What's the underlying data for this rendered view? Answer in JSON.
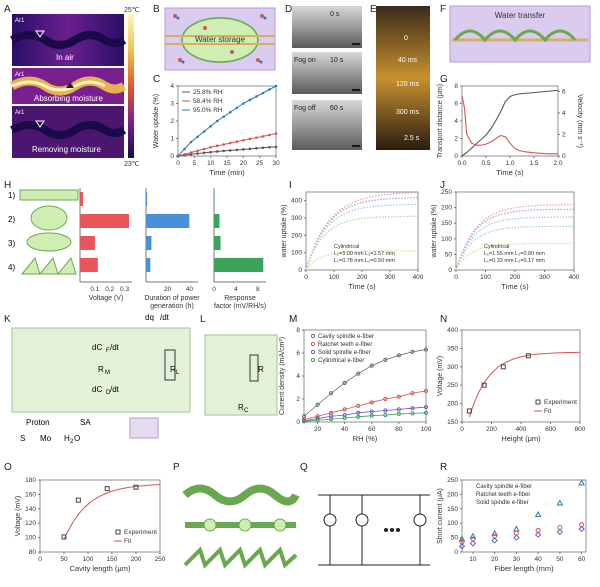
{
  "panel_letters": [
    "A",
    "B",
    "C",
    "D",
    "E",
    "F",
    "G",
    "H",
    "I",
    "J",
    "K",
    "L",
    "M",
    "N",
    "O",
    "P",
    "Q",
    "R"
  ],
  "panel_a": {
    "tag": "Ar1",
    "scale_max": "25℃",
    "scale_min": "23℃",
    "captions": [
      "In air",
      "Absorbing moisture",
      "Removing moisture"
    ],
    "colors": {
      "cold": "#1b0a4a",
      "mid": "#7a1f8f",
      "hot": "#f2c14e"
    }
  },
  "panel_b": {
    "label": "Water storage",
    "accent": "#8bd36a",
    "frame": "#b49ad9"
  },
  "panel_d": {
    "labels": [
      "0 s",
      "Fog on",
      "10 s",
      "Fog off",
      "60 s"
    ]
  },
  "panel_e": {
    "labels": [
      "0",
      "40 ms",
      "120 ms",
      "300 ms",
      "2.5 s"
    ]
  },
  "panel_f": {
    "label": "Water transfer"
  },
  "panel_h": {
    "rows": [
      "1)",
      "2)",
      "3)",
      "4)"
    ],
    "axis_titles": [
      "Voltage (V)",
      "Duration of power\ngeneration (h)",
      "Response\nfactor (mV/RH/s)"
    ],
    "colors": [
      "#e8555a",
      "#4a90d9",
      "#3aa55a"
    ]
  },
  "panel_k": {
    "labels": [
      "dq",
      "/dt",
      "dC",
      "F",
      "/dt",
      "R",
      "M",
      "dC",
      "D",
      "/dt",
      "R",
      "L",
      "R",
      "C"
    ],
    "legend": [
      "Proton",
      "SA",
      "S",
      "Mo",
      "H",
      "2",
      "O"
    ]
  },
  "panel_l": {
    "labels": [
      "R",
      "R",
      "C"
    ]
  },
  "panel_n": {
    "inset_label": "Height",
    "legend": [
      "Experiment",
      "Fit"
    ]
  },
  "panel_o": {
    "inset_label": "Length",
    "legend": [
      "Experiment",
      "Fit"
    ]
  },
  "chart_data": [
    {
      "id": "C",
      "type": "line",
      "xlabel": "Time (min)",
      "ylabel": "Water uptake (%)",
      "xlim": [
        0,
        30
      ],
      "ylim": [
        0,
        4
      ],
      "xticks": [
        "0",
        "5",
        "10",
        "15",
        "20",
        "25",
        "30"
      ],
      "yticks": [
        "0",
        "1",
        "2",
        "3",
        "4"
      ],
      "series": [
        {
          "name": "25.8% RH",
          "color": "#555555",
          "x": [
            0,
            2,
            4,
            6,
            8,
            10,
            12,
            14,
            16,
            18,
            20,
            22,
            24,
            26,
            28,
            30
          ],
          "y": [
            0,
            0.05,
            0.1,
            0.14,
            0.18,
            0.22,
            0.26,
            0.29,
            0.32,
            0.35,
            0.38,
            0.41,
            0.44,
            0.47,
            0.5,
            0.52
          ]
        },
        {
          "name": "58.4% RH",
          "color": "#d9534f",
          "x": [
            0,
            2,
            4,
            6,
            8,
            10,
            12,
            14,
            16,
            18,
            20,
            22,
            24,
            26,
            28,
            30
          ],
          "y": [
            0,
            0.1,
            0.2,
            0.3,
            0.4,
            0.5,
            0.58,
            0.66,
            0.74,
            0.82,
            0.9,
            0.98,
            1.05,
            1.12,
            1.2,
            1.28
          ]
        },
        {
          "name": "95.0% RH",
          "color": "#2a7ab0",
          "x": [
            0,
            2,
            4,
            6,
            8,
            10,
            12,
            14,
            16,
            18,
            20,
            22,
            24,
            26,
            28,
            30
          ],
          "y": [
            0,
            0.4,
            0.8,
            1.1,
            1.4,
            1.7,
            2.0,
            2.25,
            2.5,
            2.75,
            3.0,
            3.2,
            3.4,
            3.6,
            3.8,
            4.0
          ]
        }
      ]
    },
    {
      "id": "G",
      "type": "line",
      "xlabel": "Time (s)",
      "ylabel": "Transport distance (μm)",
      "y2label": "Velocity (mm s⁻¹)",
      "xlim": [
        0,
        2.0
      ],
      "ylim": [
        0,
        8
      ],
      "y2lim": [
        0,
        6.5
      ],
      "xticks": [
        "0.0",
        "0.5",
        "1.0",
        "1.5",
        "2.0"
      ],
      "yticks": [
        "0",
        "2",
        "4",
        "6",
        "8"
      ],
      "y2ticks": [
        "0",
        "2",
        "4",
        "6"
      ],
      "series": [
        {
          "axis": "left",
          "color": "#555555",
          "x": [
            0,
            0.1,
            0.2,
            0.3,
            0.4,
            0.5,
            0.6,
            0.7,
            0.8,
            0.9,
            1.0,
            1.1,
            1.2,
            1.4,
            1.6,
            1.8,
            2.0
          ],
          "y": [
            0,
            0.4,
            0.9,
            1.4,
            1.9,
            2.4,
            3.1,
            4.0,
            5.0,
            6.2,
            6.8,
            7.0,
            7.1,
            7.2,
            7.3,
            7.4,
            7.5
          ]
        },
        {
          "axis": "right",
          "color": "#d9534f",
          "x": [
            0,
            0.05,
            0.1,
            0.2,
            0.3,
            0.4,
            0.5,
            0.6,
            0.7,
            0.8,
            0.9,
            1.0,
            1.1,
            1.2,
            1.3,
            1.5,
            1.8,
            2.0
          ],
          "y": [
            5.6,
            4.5,
            2.0,
            1.2,
            1.0,
            1.0,
            1.1,
            1.3,
            1.6,
            1.9,
            1.8,
            1.2,
            0.7,
            0.5,
            0.4,
            0.3,
            0.2,
            0.2
          ]
        }
      ]
    },
    {
      "id": "H",
      "type": "bar",
      "orientation": "horizontal",
      "categories": [
        "1)",
        "2)",
        "3)",
        "4)"
      ],
      "groups": [
        {
          "title": "Voltage (V)",
          "color": "#e8555a",
          "xlim": [
            0,
            0.35
          ],
          "xticks": [
            "0.1",
            "0.2",
            "0.3"
          ],
          "values": [
            0.02,
            0.33,
            0.1,
            0.12
          ]
        },
        {
          "title": "Duration of power\ngeneration (h)",
          "color": "#4a90d9",
          "xlim": [
            0,
            48
          ],
          "xticks": [
            "20",
            "40"
          ],
          "values": [
            1,
            40,
            5,
            4
          ]
        },
        {
          "title": "Response\nfactor (mV/RH/s)",
          "color": "#3aa55a",
          "xlim": [
            0,
            9.5
          ],
          "xticks": [
            "0",
            "4",
            "8"
          ],
          "values": [
            0.1,
            1.0,
            1.2,
            9.0
          ]
        }
      ]
    },
    {
      "id": "I",
      "type": "line",
      "xlabel": "Time (s)",
      "ylabel": "water uptake (%)",
      "xlim": [
        0,
        400
      ],
      "ylim": [
        0,
        450
      ],
      "xticks": [
        "0",
        "100",
        "200",
        "300",
        "400"
      ],
      "yticks": [
        "0",
        "100",
        "200",
        "300",
        "400"
      ],
      "legend": [
        "Cylindrical",
        "L₁=3.00 mm  L₂=1.57 mm",
        "L₁=0.78 mm  L₂=0.50 mm"
      ],
      "series": [
        {
          "color": "#e6a2a2",
          "asym": 450,
          "k": 0.012
        },
        {
          "color": "#b89ad6",
          "asym": 420,
          "k": 0.013
        },
        {
          "color": "#9cc7e6",
          "asym": 380,
          "k": 0.014
        },
        {
          "color": "#a8d8a8",
          "asym": 310,
          "k": 0.016
        },
        {
          "color": "#f2d27a",
          "asym": 110,
          "k": 0.02
        }
      ]
    },
    {
      "id": "J",
      "type": "line",
      "xlabel": "Time (s)",
      "ylabel": "water uptake (%)",
      "xlim": [
        0,
        400
      ],
      "ylim": [
        0,
        250
      ],
      "xticks": [
        "0",
        "100",
        "200",
        "300",
        "400"
      ],
      "yticks": [
        "0",
        "50",
        "100",
        "150",
        "200",
        "250"
      ],
      "legend": [
        "Cylindrical",
        "L₁=1.55 mm  L₂=0.80 mm",
        "L₁=0.33 mm  L₂=0.17 mm"
      ],
      "series": [
        {
          "color": "#e6a2a2",
          "asym": 210,
          "k": 0.015
        },
        {
          "color": "#b89ad6",
          "asym": 195,
          "k": 0.016
        },
        {
          "color": "#9cc7e6",
          "asym": 170,
          "k": 0.017
        },
        {
          "color": "#a8d8a8",
          "asym": 140,
          "k": 0.018
        },
        {
          "color": "#f2d27a",
          "asym": 85,
          "k": 0.02
        }
      ]
    },
    {
      "id": "M",
      "type": "scatter",
      "xlabel": "RH (%)",
      "ylabel": "Current density (mA/cm²)",
      "xlim": [
        10,
        100
      ],
      "ylim": [
        0,
        8
      ],
      "xticks": [
        "20",
        "40",
        "60",
        "80",
        "100"
      ],
      "yticks": [
        "0",
        "2",
        "4",
        "6",
        "8"
      ],
      "series": [
        {
          "name": "Cavity spindle e-fiber",
          "color": "#6b6b6b",
          "x": [
            10,
            20,
            30,
            40,
            50,
            60,
            70,
            80,
            90,
            100
          ],
          "y": [
            0.5,
            1.5,
            2.5,
            3.4,
            4.2,
            4.9,
            5.4,
            5.8,
            6.1,
            6.3
          ]
        },
        {
          "name": "Ratchet teeth e-fiber",
          "color": "#d9534f",
          "x": [
            10,
            20,
            30,
            40,
            50,
            60,
            70,
            80,
            90,
            100
          ],
          "y": [
            0.2,
            0.5,
            0.8,
            1.1,
            1.4,
            1.7,
            2.0,
            2.2,
            2.5,
            2.7
          ]
        },
        {
          "name": "Solid spindle e-fiber",
          "color": "#6a5acd",
          "x": [
            10,
            20,
            30,
            40,
            50,
            60,
            70,
            80,
            90,
            100
          ],
          "y": [
            0.1,
            0.3,
            0.5,
            0.6,
            0.8,
            0.9,
            1.0,
            1.1,
            1.2,
            1.3
          ]
        },
        {
          "name": "Cylindrical e-fiber",
          "color": "#3aa55a",
          "x": [
            10,
            20,
            30,
            40,
            50,
            60,
            70,
            80,
            90,
            100
          ],
          "y": [
            0.05,
            0.15,
            0.25,
            0.35,
            0.45,
            0.55,
            0.6,
            0.7,
            0.75,
            0.8
          ]
        }
      ]
    },
    {
      "id": "N",
      "type": "scatter",
      "xlabel": "Height (μm)",
      "ylabel": "Voltage (mV)",
      "xlim": [
        0,
        800
      ],
      "ylim": [
        150,
        400
      ],
      "xticks": [
        "0",
        "200",
        "400",
        "600",
        "800"
      ],
      "yticks": [
        "150",
        "200",
        "250",
        "300",
        "350",
        "400"
      ],
      "series": [
        {
          "name": "Experiment",
          "color": "#444444",
          "x": [
            50,
            150,
            280,
            450
          ],
          "y": [
            180,
            250,
            300,
            330
          ]
        },
        {
          "name": "Fit",
          "color": "#d9534f",
          "fit": true
        }
      ]
    },
    {
      "id": "O",
      "type": "scatter",
      "xlabel": "Cavity length (μm)",
      "ylabel": "Voltage (mV)",
      "xlim": [
        0,
        250
      ],
      "ylim": [
        80,
        180
      ],
      "xticks": [
        "0",
        "50",
        "100",
        "150",
        "200",
        "250"
      ],
      "yticks": [
        "80",
        "100",
        "120",
        "140",
        "160",
        "180"
      ],
      "series": [
        {
          "name": "Experiment",
          "color": "#444444",
          "x": [
            50,
            80,
            140,
            200
          ],
          "y": [
            101,
            152,
            168,
            170
          ]
        },
        {
          "name": "Fit",
          "color": "#d9534f",
          "fit": true
        }
      ]
    },
    {
      "id": "R",
      "type": "scatter",
      "xlabel": "Fiber length (mm)",
      "ylabel": "Short current (μA)",
      "xlim": [
        5,
        62
      ],
      "ylim": [
        0,
        250
      ],
      "xticks": [
        "10",
        "20",
        "30",
        "40",
        "50",
        "60"
      ],
      "yticks": [
        "0",
        "50",
        "100",
        "150",
        "200",
        "250"
      ],
      "series": [
        {
          "name": "Cavity spindle e-fiber",
          "color": "#2a7ab0",
          "marker": "triangle",
          "x": [
            5,
            10,
            20,
            30,
            40,
            50,
            60
          ],
          "y": [
            45,
            55,
            65,
            80,
            130,
            170,
            240
          ]
        },
        {
          "name": "Ratchet teeth e-fiber",
          "color": "#d9534f",
          "marker": "circle",
          "x": [
            5,
            10,
            20,
            30,
            40,
            50,
            60
          ],
          "y": [
            35,
            45,
            55,
            65,
            75,
            85,
            95
          ]
        },
        {
          "name": "Solid spindle e-fiber",
          "color": "#6a5acd",
          "marker": "diamond",
          "x": [
            5,
            10,
            20,
            30,
            40,
            50,
            60
          ],
          "y": [
            20,
            30,
            40,
            50,
            60,
            70,
            80
          ]
        }
      ]
    }
  ]
}
